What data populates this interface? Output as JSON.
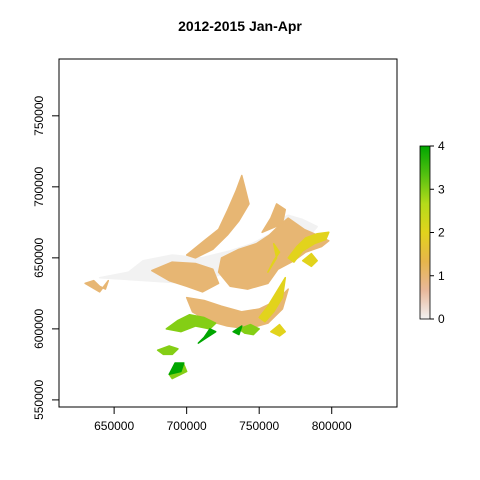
{
  "title": "2012-2015 Jan-Apr",
  "axes": {
    "x": {
      "range": [
        612000,
        845000
      ],
      "ticks": [
        650000,
        700000,
        750000,
        800000
      ],
      "tick_labels": [
        "650000",
        "700000",
        "750000",
        "800000"
      ]
    },
    "y": {
      "range": [
        545000,
        790000
      ],
      "ticks": [
        550000,
        600000,
        650000,
        700000,
        750000
      ],
      "tick_labels": [
        "550000",
        "600000",
        "650000",
        "700000",
        "750000"
      ]
    }
  },
  "legend": {
    "placement": "right",
    "range": [
      0,
      4
    ],
    "ticks": [
      0,
      1,
      2,
      3,
      4
    ],
    "tick_labels": [
      "0",
      "1",
      "2",
      "3",
      "4"
    ],
    "colors": [
      "#f2f2f2",
      "#e8b79a",
      "#e6b54b",
      "#e2d31c",
      "#b4db1a",
      "#54c010",
      "#00a600"
    ]
  },
  "chart_data": {
    "type": "heatmap",
    "description_units": "x,y in map projection metres; value is the raster cell value 0-4",
    "x_range": [
      612000,
      845000
    ],
    "y_range": [
      545000,
      790000
    ],
    "value_range": [
      0,
      4
    ],
    "regions": [
      {
        "value": 0.0,
        "points": [
          [
            640000,
            636000
          ],
          [
            660000,
            640000
          ],
          [
            670000,
            648000
          ],
          [
            690000,
            652000
          ],
          [
            710000,
            650000
          ],
          [
            730000,
            655000
          ],
          [
            745000,
            660000
          ],
          [
            760000,
            668000
          ],
          [
            772000,
            676000
          ],
          [
            778000,
            665000
          ],
          [
            772000,
            652000
          ],
          [
            762000,
            648000
          ],
          [
            700000,
            632000
          ]
        ]
      },
      {
        "value": 0.0,
        "points": [
          [
            760000,
            675000
          ],
          [
            770000,
            680000
          ],
          [
            780000,
            677000
          ],
          [
            790000,
            672000
          ],
          [
            785000,
            666000
          ],
          [
            772000,
            668000
          ]
        ]
      },
      {
        "value": 0.0,
        "points": [
          [
            735000,
            648000
          ],
          [
            748000,
            650000
          ],
          [
            755000,
            640000
          ],
          [
            750000,
            632000
          ],
          [
            740000,
            633000
          ]
        ]
      },
      {
        "value": 1.0,
        "points": [
          [
            700000,
            652000
          ],
          [
            712000,
            662000
          ],
          [
            722000,
            670000
          ],
          [
            728000,
            683000
          ],
          [
            734000,
            697000
          ],
          [
            738000,
            708000
          ],
          [
            740000,
            700000
          ],
          [
            743000,
            688000
          ],
          [
            736000,
            676000
          ],
          [
            728000,
            666000
          ],
          [
            718000,
            656000
          ],
          [
            706000,
            650000
          ]
        ]
      },
      {
        "value": 1.0,
        "points": [
          [
            724000,
            650000
          ],
          [
            736000,
            656000
          ],
          [
            748000,
            660000
          ],
          [
            757000,
            666000
          ],
          [
            763000,
            672000
          ],
          [
            770000,
            678000
          ],
          [
            781000,
            670000
          ],
          [
            790000,
            666000
          ],
          [
            798000,
            662000
          ],
          [
            793000,
            658000
          ],
          [
            782000,
            654000
          ],
          [
            774000,
            648000
          ],
          [
            763000,
            642000
          ],
          [
            756000,
            632000
          ],
          [
            742000,
            628000
          ],
          [
            730000,
            630000
          ],
          [
            722000,
            640000
          ]
        ]
      },
      {
        "value": 1.0,
        "points": [
          [
            676000,
            641000
          ],
          [
            690000,
            647000
          ],
          [
            706000,
            646000
          ],
          [
            718000,
            642000
          ],
          [
            722000,
            632000
          ],
          [
            711000,
            626000
          ],
          [
            700000,
            630000
          ],
          [
            688000,
            634000
          ]
        ]
      },
      {
        "value": 1.0,
        "points": [
          [
            700000,
            622000
          ],
          [
            712000,
            620000
          ],
          [
            724000,
            616000
          ],
          [
            738000,
            612000
          ],
          [
            750000,
            614000
          ],
          [
            762000,
            620000
          ],
          [
            770000,
            628000
          ],
          [
            766000,
            614000
          ],
          [
            756000,
            604000
          ],
          [
            742000,
            600000
          ],
          [
            728000,
            602000
          ],
          [
            714000,
            606000
          ],
          [
            704000,
            612000
          ]
        ]
      },
      {
        "value": 1.0,
        "points": [
          [
            752000,
            668000
          ],
          [
            758000,
            678000
          ],
          [
            762000,
            688000
          ],
          [
            768000,
            684000
          ],
          [
            766000,
            674000
          ]
        ]
      },
      {
        "value": 1.0,
        "points": [
          [
            630000,
            632000
          ],
          [
            636000,
            634000
          ],
          [
            640000,
            630000
          ],
          [
            644000,
            628000
          ],
          [
            646000,
            634000
          ],
          [
            640000,
            626000
          ]
        ]
      },
      {
        "value": 2.0,
        "points": [
          [
            770000,
            650000
          ],
          [
            776000,
            658000
          ],
          [
            782000,
            664000
          ],
          [
            790000,
            667000
          ],
          [
            798000,
            668000
          ],
          [
            796000,
            663000
          ],
          [
            788000,
            660000
          ],
          [
            780000,
            655000
          ],
          [
            774000,
            647000
          ]
        ]
      },
      {
        "value": 2.0,
        "points": [
          [
            756000,
            640000
          ],
          [
            760000,
            648000
          ],
          [
            764000,
            654000
          ],
          [
            760000,
            660000
          ],
          [
            762000,
            650000
          ]
        ]
      },
      {
        "value": 2.0,
        "points": [
          [
            750000,
            608000
          ],
          [
            756000,
            616000
          ],
          [
            762000,
            626000
          ],
          [
            768000,
            636000
          ],
          [
            766000,
            622000
          ],
          [
            760000,
            612000
          ],
          [
            754000,
            605000
          ]
        ]
      },
      {
        "value": 2.0,
        "points": [
          [
            780000,
            648000
          ],
          [
            786000,
            653000
          ],
          [
            790000,
            648000
          ],
          [
            786000,
            644000
          ]
        ]
      },
      {
        "value": 2.0,
        "points": [
          [
            758000,
            598000
          ],
          [
            764000,
            603000
          ],
          [
            768000,
            598000
          ],
          [
            764000,
            595000
          ]
        ]
      },
      {
        "value": 3.0,
        "points": [
          [
            686000,
            600000
          ],
          [
            694000,
            606000
          ],
          [
            702000,
            610000
          ],
          [
            712000,
            608000
          ],
          [
            720000,
            604000
          ],
          [
            716000,
            600000
          ],
          [
            706000,
            602000
          ],
          [
            696000,
            598000
          ]
        ]
      },
      {
        "value": 3.0,
        "points": [
          [
            680000,
            585000
          ],
          [
            688000,
            588000
          ],
          [
            694000,
            586000
          ],
          [
            690000,
            582000
          ],
          [
            684000,
            582000
          ]
        ]
      },
      {
        "value": 3.0,
        "points": [
          [
            690000,
            565000
          ],
          [
            696000,
            568000
          ],
          [
            700000,
            570000
          ],
          [
            698000,
            575000
          ],
          [
            692000,
            572000
          ],
          [
            688000,
            568000
          ]
        ]
      },
      {
        "value": 3.0,
        "points": [
          [
            736000,
            600000
          ],
          [
            744000,
            603000
          ],
          [
            750000,
            600000
          ],
          [
            746000,
            596000
          ],
          [
            740000,
            597000
          ]
        ]
      },
      {
        "value": 4.0,
        "points": [
          [
            708000,
            590000
          ],
          [
            714000,
            594000
          ],
          [
            720000,
            598000
          ],
          [
            716000,
            600000
          ],
          [
            712000,
            594000
          ]
        ]
      },
      {
        "value": 4.0,
        "points": [
          [
            688000,
            568000
          ],
          [
            696000,
            570000
          ],
          [
            698000,
            576000
          ],
          [
            692000,
            576000
          ],
          [
            690000,
            572000
          ]
        ]
      },
      {
        "value": 4.0,
        "points": [
          [
            732000,
            598000
          ],
          [
            738000,
            602000
          ],
          [
            736000,
            596000
          ]
        ]
      }
    ]
  }
}
